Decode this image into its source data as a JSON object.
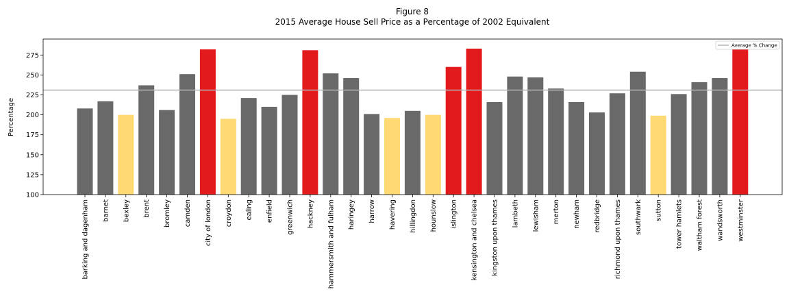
{
  "chart_data": {
    "type": "bar",
    "title": "Figure 8",
    "subtitle": "2015 Average House Sell Price as a Percentage of 2002 Equivalent",
    "xlabel": "",
    "ylabel": "Percentage",
    "ylim": [
      100,
      295
    ],
    "yticks": [
      100,
      125,
      150,
      175,
      200,
      225,
      250,
      275
    ],
    "grid": false,
    "legend_position": "top-right",
    "colors": {
      "normal": "#696969",
      "high": "#e31a1c",
      "low": "#ffd974",
      "average_line": "#b3b3b3"
    },
    "average_line": {
      "name": "Average % Change",
      "value": 231
    },
    "categories": [
      "barking and dagenham",
      "barnet",
      "bexley",
      "brent",
      "bromley",
      "camden",
      "city of london",
      "croydon",
      "ealing",
      "enfield",
      "greenwich",
      "hackney",
      "hammersmith and fulham",
      "haringey",
      "harrow",
      "havering",
      "hillingdon",
      "hounslow",
      "islington",
      "kensington and chelsea",
      "kingston upon thames",
      "lambeth",
      "lewisham",
      "merton",
      "newham",
      "redbridge",
      "richmond upon thames",
      "southwark",
      "sutton",
      "tower hamlets",
      "waltham forest",
      "wandsworth",
      "westminster"
    ],
    "values": [
      208,
      217,
      200,
      237,
      206,
      251,
      282,
      195,
      221,
      210,
      225,
      281,
      252,
      246,
      201,
      196,
      205,
      200,
      260,
      283,
      216,
      248,
      247,
      233,
      216,
      203,
      227,
      254,
      199,
      226,
      241,
      246,
      285
    ],
    "bar_groups": [
      "normal",
      "normal",
      "low",
      "normal",
      "normal",
      "normal",
      "high",
      "low",
      "normal",
      "normal",
      "normal",
      "high",
      "normal",
      "normal",
      "normal",
      "low",
      "normal",
      "low",
      "high",
      "high",
      "normal",
      "normal",
      "normal",
      "normal",
      "normal",
      "normal",
      "normal",
      "normal",
      "low",
      "normal",
      "normal",
      "normal",
      "high"
    ]
  }
}
